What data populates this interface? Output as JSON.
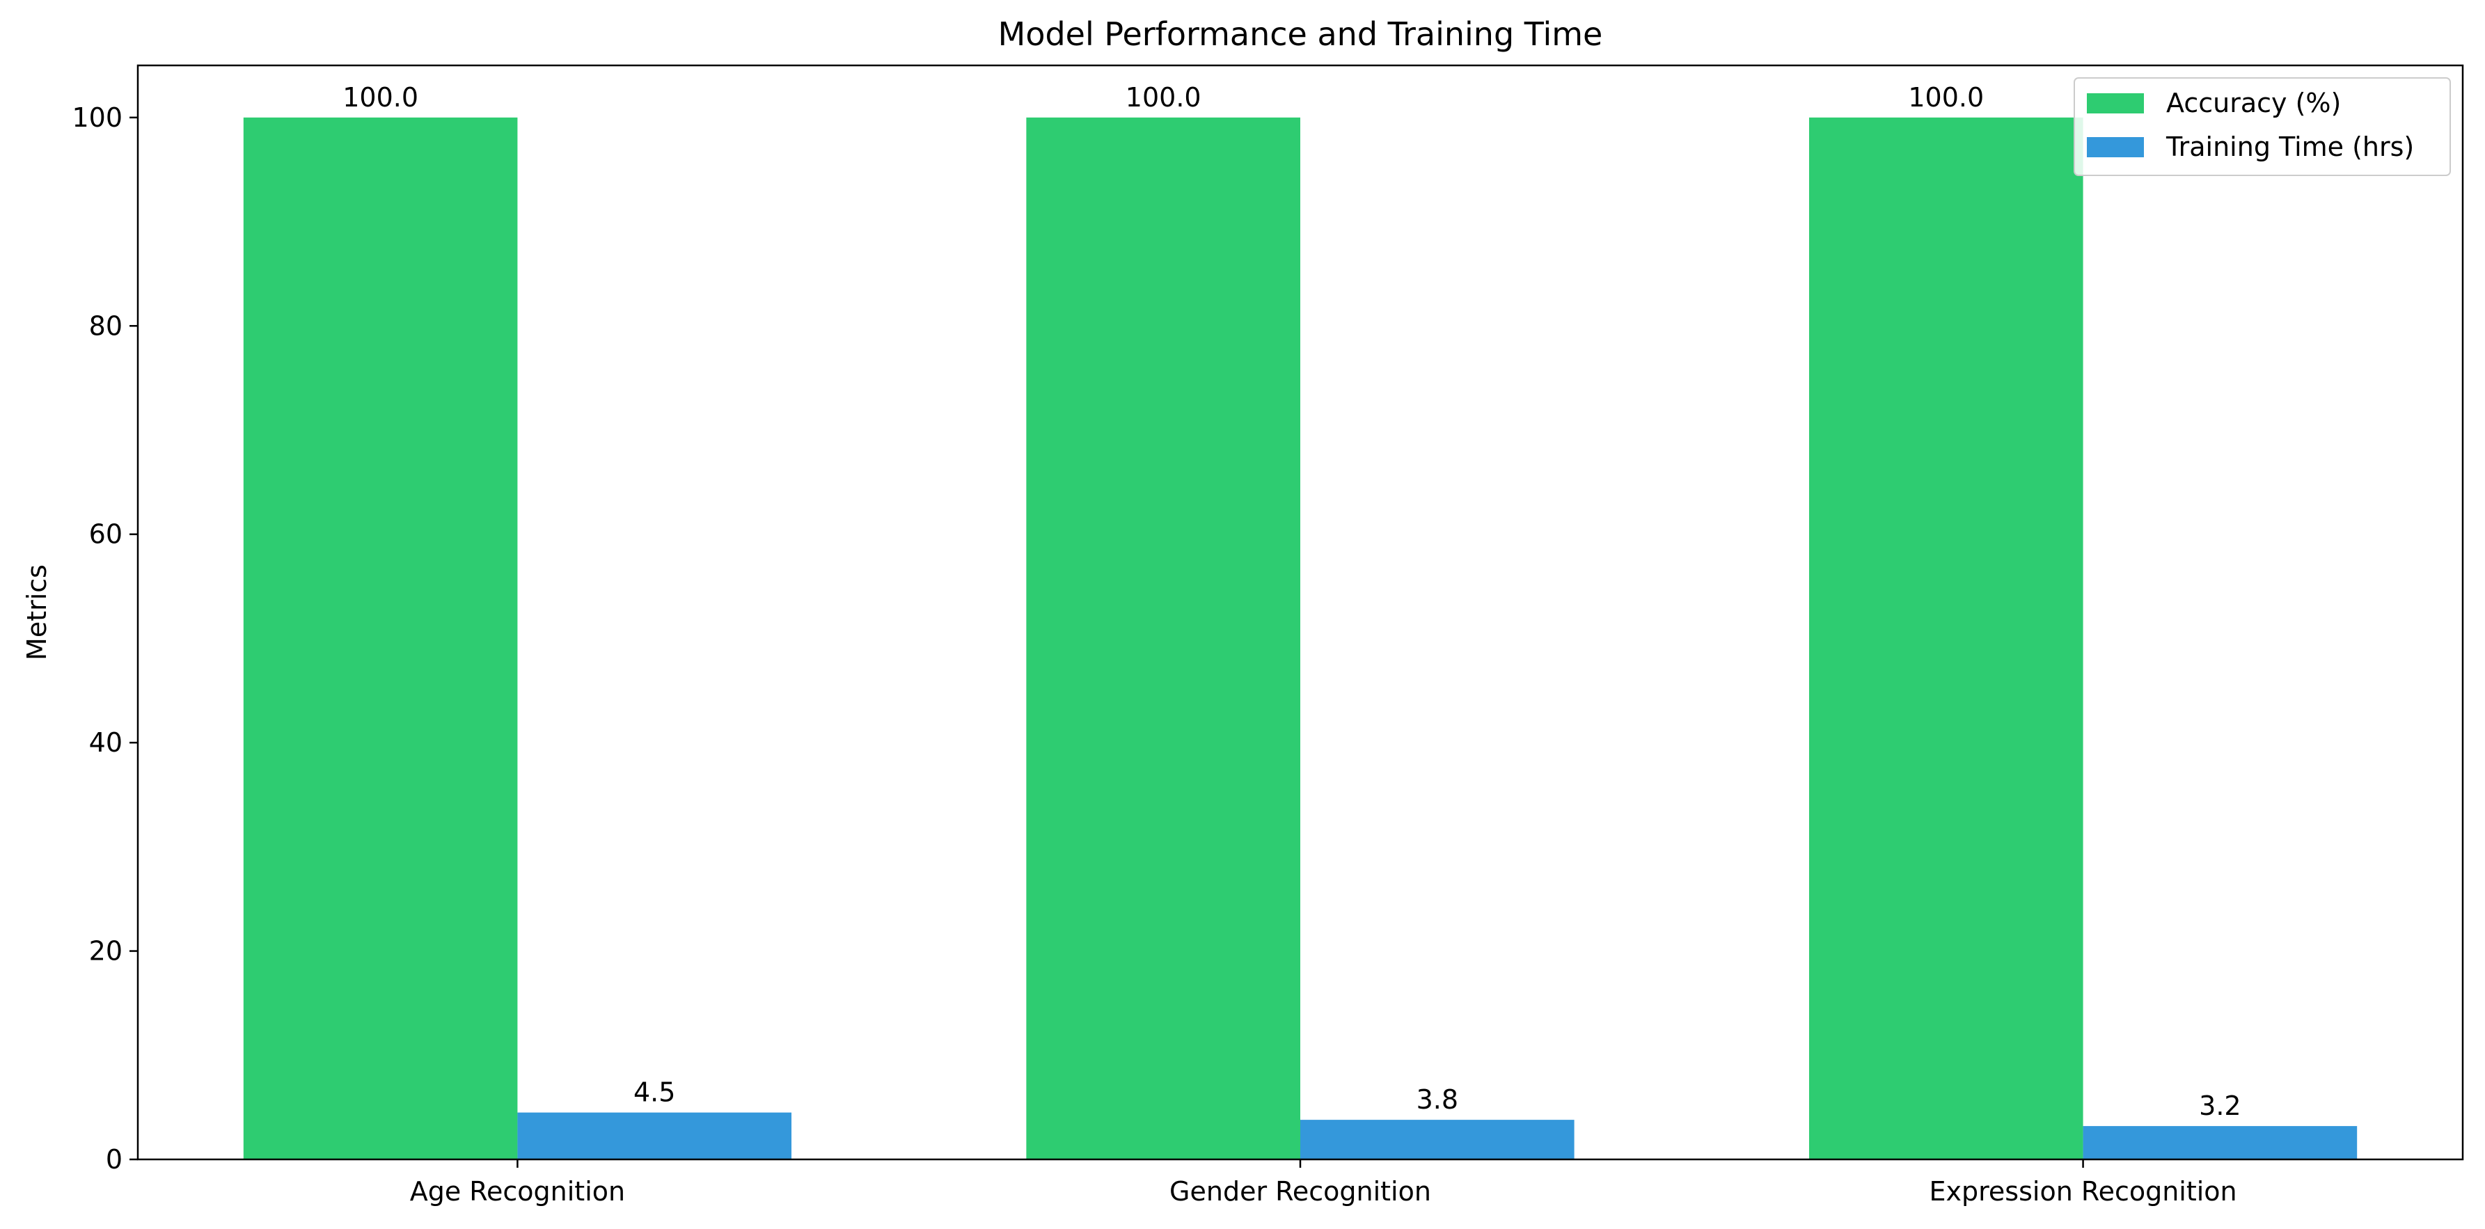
{
  "chart_data": {
    "type": "bar",
    "title": "Model Performance and Training Time",
    "xlabel": "",
    "ylabel": "Metrics",
    "categories": [
      "Age Recognition",
      "Gender Recognition",
      "Expression Recognition"
    ],
    "series": [
      {
        "name": "Accuracy (%)",
        "values": [
          100.0,
          100.0,
          100.0
        ],
        "labels": [
          "100.0",
          "100.0",
          "100.0"
        ],
        "color": "#2ecc71"
      },
      {
        "name": "Training Time (hrs)",
        "values": [
          4.5,
          3.8,
          3.2
        ],
        "labels": [
          "4.5",
          "3.8",
          "3.2"
        ],
        "color": "#3498db"
      }
    ],
    "ylim": [
      0,
      105
    ],
    "yticks": [
      0,
      20,
      40,
      60,
      80,
      100
    ],
    "grid": false,
    "legend_position": "top-right"
  }
}
